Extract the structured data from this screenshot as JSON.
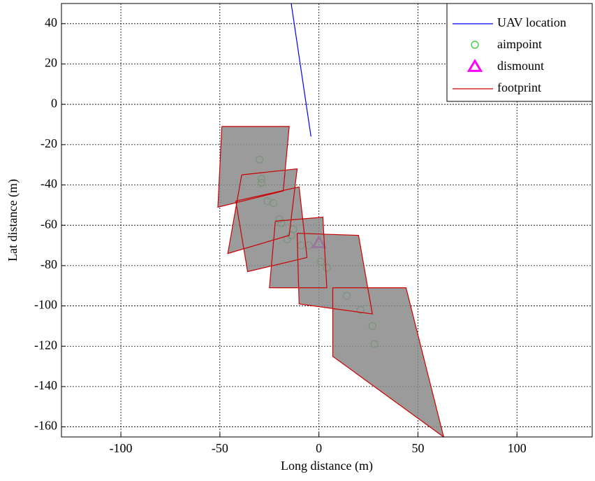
{
  "chart_data": {
    "type": "line",
    "xlabel": "Long distance (m)",
    "ylabel": "Lat distance (m)",
    "xlim": [
      -130,
      138
    ],
    "ylim": [
      -165,
      50
    ],
    "xticks": [
      -100,
      -50,
      0,
      50,
      100
    ],
    "yticks": [
      40,
      20,
      0,
      -20,
      -40,
      -60,
      -80,
      -100,
      -120,
      -140,
      -160
    ],
    "grid": true,
    "legend": "upper right",
    "series": [
      {
        "name": "UAV location",
        "color": "#0000ff",
        "marker": "none",
        "x": [
          -14,
          -4
        ],
        "y": [
          50,
          -16
        ]
      },
      {
        "name": "aimpoint",
        "color": "#22cc22",
        "marker": "o",
        "x": [
          -30,
          -29,
          -29,
          -26,
          -23,
          -20,
          -19,
          -13,
          -14,
          -16,
          -9,
          -5,
          1,
          4,
          14,
          21,
          27,
          28
        ],
        "y": [
          -27.5,
          -37,
          -39,
          -48,
          -49,
          -57,
          -59,
          -62,
          -65,
          -67,
          -70,
          -70,
          -78,
          -81,
          -95,
          -102,
          -110,
          -119
        ]
      },
      {
        "name": "dismount",
        "color": "#ff00ff",
        "marker": "^",
        "x": [
          0
        ],
        "y": [
          -69
        ]
      },
      {
        "name": "footprint",
        "color": "#cc0000",
        "marker": "none",
        "fill": "#8a8a8a",
        "x": [
          -49,
          -15,
          -18,
          -51,
          -49,
          null,
          -39,
          -11,
          -15,
          -46,
          -39,
          null,
          -42,
          -10,
          -6,
          -36,
          -42,
          null,
          -22,
          2,
          4,
          -25,
          -22,
          null,
          -11,
          20,
          27,
          -10,
          -11,
          null,
          7,
          44,
          63,
          7,
          7
        ],
        "y": [
          -11,
          -11,
          -43,
          -51,
          -11,
          null,
          -35,
          -32,
          -65,
          -74,
          -35,
          null,
          -48,
          -41,
          -76,
          -83,
          -48,
          null,
          -58,
          -56,
          -91,
          -91,
          -58,
          null,
          -64,
          -65,
          -104,
          -99,
          -64,
          null,
          -91,
          -91,
          -165,
          -125,
          -91
        ]
      }
    ]
  }
}
